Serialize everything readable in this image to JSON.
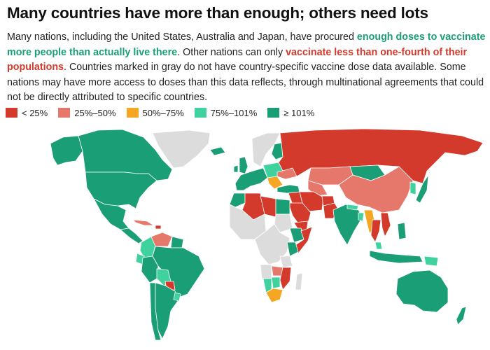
{
  "title": "Many countries have more than enough; others need lots",
  "description": {
    "part1": "Many nations, including the United States, Australia and Japan, have procured ",
    "green": "enough doses to vaccinate more people than actually live there",
    "part2": ". Other nations can only ",
    "red": "vaccinate less than one-fourth of their populations",
    "part3": ". Countries marked in gray do not have country-specific vaccine dose data available. Some nations may have more access to doses than this data reflects, through multinational agreements that could not be directly attributed to specific countries."
  },
  "legend": [
    {
      "label": "< 25%",
      "color": "#d33a2c"
    },
    {
      "label": "25%–50%",
      "color": "#e5776b"
    },
    {
      "label": "50%–75%",
      "color": "#f5a623"
    },
    {
      "label": "75%–101%",
      "color": "#3fd19e"
    },
    {
      "label": "≥ 101%",
      "color": "#1a9e76"
    }
  ],
  "colors": {
    "no_data": "#dcdcdc",
    "lt25": "#d33a2c",
    "r25_50": "#e5776b",
    "r50_75": "#f5a623",
    "r75_101": "#3fd19e",
    "gte101": "#1a9e76"
  },
  "countries": {
    "canada": "gte101",
    "usa": "gte101",
    "mexico": "gte101",
    "greenland": "no_data",
    "alaska": "gte101",
    "central_america": "gte101",
    "cuba": "r25_50",
    "caribbean": "lt25",
    "colombia": "r75_101",
    "venezuela": "r25_50",
    "guianas": "gte101",
    "ecuador": "r75_101",
    "peru": "gte101",
    "brazil": "gte101",
    "bolivia": "r75_101",
    "paraguay": "lt25",
    "chile": "gte101",
    "argentina": "gte101",
    "uruguay": "r75_101",
    "iceland": "gte101",
    "uk": "gte101",
    "ireland": "gte101",
    "western_europe": "gte101",
    "scandinavia": "no_data",
    "finland": "gte101",
    "eastern_europe": "r75_101",
    "ukraine": "r25_50",
    "balkans": "r50_75",
    "turkey": "gte101",
    "russia": "lt25",
    "kazakhstan": "r25_50",
    "central_asia": "r25_50",
    "mongolia": "gte101",
    "china": "r25_50",
    "korea": "r75_101",
    "japan": "gte101",
    "iran": "lt25",
    "iraq_syria": "lt25",
    "saudi_arabia": "lt25",
    "yemen": "lt25",
    "afghanistan": "lt25",
    "pakistan": "lt25",
    "india": "gte101",
    "nepal": "r75_101",
    "bangladesh": "r75_101",
    "myanmar": "r50_75",
    "thailand": "lt25",
    "vietnam": "lt25",
    "malaysia": "r75_101",
    "indonesia": "gte101",
    "philippines": "gte101",
    "australia": "gte101",
    "new_zealand": "gte101",
    "papua_new_guinea": "r75_101",
    "morocco": "gte101",
    "algeria": "lt25",
    "libya": "lt25",
    "egypt": "gte101",
    "sudan": "no_data",
    "west_africa": "no_data",
    "central_africa": "no_data",
    "ethiopia": "gte101",
    "somalia": "lt25",
    "kenya": "gte101",
    "tanzania": "no_data",
    "angola": "no_data",
    "zambia": "r25_50",
    "mozambique": "lt25",
    "namibia": "r75_101",
    "botswana": "r75_101",
    "south_africa": "r50_75",
    "madagascar": "no_data"
  }
}
